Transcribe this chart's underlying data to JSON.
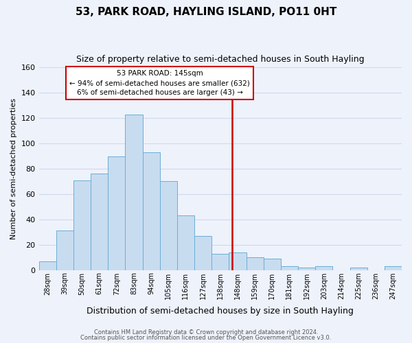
{
  "title": "53, PARK ROAD, HAYLING ISLAND, PO11 0HT",
  "subtitle": "Size of property relative to semi-detached houses in South Hayling",
  "xlabel": "Distribution of semi-detached houses by size in South Hayling",
  "ylabel": "Number of semi-detached properties",
  "categories": [
    "28sqm",
    "39sqm",
    "50sqm",
    "61sqm",
    "72sqm",
    "83sqm",
    "94sqm",
    "105sqm",
    "116sqm",
    "127sqm",
    "138sqm",
    "148sqm",
    "159sqm",
    "170sqm",
    "181sqm",
    "192sqm",
    "203sqm",
    "214sqm",
    "225sqm",
    "236sqm",
    "247sqm"
  ],
  "bar_heights": [
    7,
    31,
    71,
    76,
    90,
    123,
    93,
    70,
    43,
    27,
    13,
    14,
    10,
    9,
    3,
    2,
    3,
    0,
    2,
    0,
    3
  ],
  "bar_color": "#c8dcf0",
  "bar_edge_color": "#6baed6",
  "marker_line_color": "#cc0000",
  "annotation_line1": "53 PARK ROAD: 145sqm",
  "annotation_line2": "← 94% of semi-detached houses are smaller (632)",
  "annotation_line3": "6% of semi-detached houses are larger (43) →",
  "annotation_box_color": "#ffffff",
  "annotation_box_edge": "#cc0000",
  "ylim": [
    0,
    160
  ],
  "footer1": "Contains HM Land Registry data © Crown copyright and database right 2024.",
  "footer2": "Contains public sector information licensed under the Open Government Licence v3.0.",
  "background_color": "#eef2fb",
  "grid_color": "#d0d8ee",
  "title_fontsize": 11,
  "subtitle_fontsize": 9
}
